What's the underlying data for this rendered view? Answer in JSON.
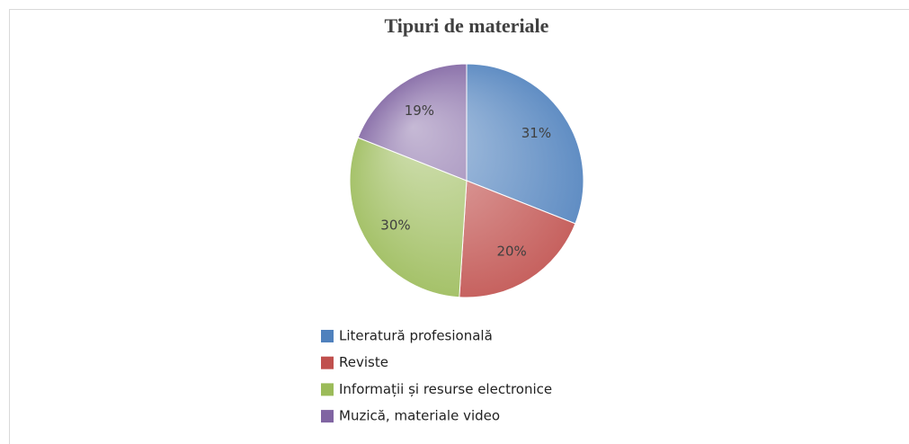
{
  "chart_data": {
    "type": "pie",
    "title": "Tipuri de materiale",
    "categories": [
      "Literatură profesională",
      "Reviste",
      "Informații și resurse electronice",
      "Muzică, materiale video"
    ],
    "values": [
      31,
      20,
      30,
      19
    ],
    "value_labels": [
      "31%",
      "20%",
      "30%",
      "19%"
    ],
    "colors": [
      "#4f81bd",
      "#c0504d",
      "#9bbb59",
      "#8064a2"
    ],
    "legend": "bottom"
  }
}
